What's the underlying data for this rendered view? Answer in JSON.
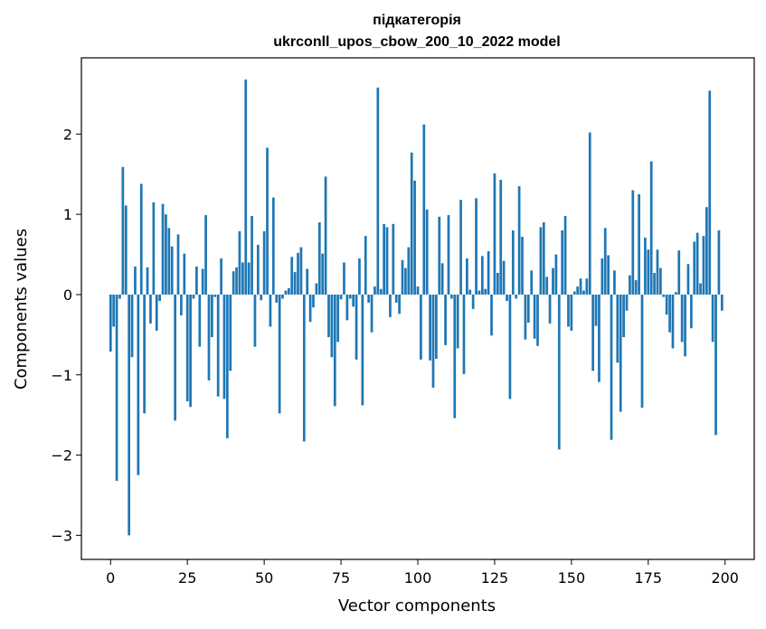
{
  "chart_data": {
    "type": "bar",
    "title_lines": [
      "підкатегорія",
      "ukrconll_upos_cbow_200_10_2022 model"
    ],
    "xlabel": "Vector components",
    "ylabel": "Components values",
    "xlim": [
      -9.5,
      209.5
    ],
    "ylim": [
      -3.3,
      2.95
    ],
    "x_ticks": [
      0,
      25,
      50,
      75,
      100,
      125,
      150,
      175,
      200
    ],
    "y_ticks": [
      -3,
      -2,
      -1,
      0,
      1,
      2
    ],
    "x_tick_labels": [
      "0",
      "25",
      "50",
      "75",
      "100",
      "125",
      "150",
      "175",
      "200"
    ],
    "y_tick_labels": [
      "−3",
      "−2",
      "−1",
      "0",
      "1",
      "2"
    ],
    "grid": false,
    "bar_color": "#1f77b4",
    "x": [
      0,
      1,
      2,
      3,
      4,
      5,
      6,
      7,
      8,
      9,
      10,
      11,
      12,
      13,
      14,
      15,
      16,
      17,
      18,
      19,
      20,
      21,
      22,
      23,
      24,
      25,
      26,
      27,
      28,
      29,
      30,
      31,
      32,
      33,
      34,
      35,
      36,
      37,
      38,
      39,
      40,
      41,
      42,
      43,
      44,
      45,
      46,
      47,
      48,
      49,
      50,
      51,
      52,
      53,
      54,
      55,
      56,
      57,
      58,
      59,
      60,
      61,
      62,
      63,
      64,
      65,
      66,
      67,
      68,
      69,
      70,
      71,
      72,
      73,
      74,
      75,
      76,
      77,
      78,
      79,
      80,
      81,
      82,
      83,
      84,
      85,
      86,
      87,
      88,
      89,
      90,
      91,
      92,
      93,
      94,
      95,
      96,
      97,
      98,
      99,
      100,
      101,
      102,
      103,
      104,
      105,
      106,
      107,
      108,
      109,
      110,
      111,
      112,
      113,
      114,
      115,
      116,
      117,
      118,
      119,
      120,
      121,
      122,
      123,
      124,
      125,
      126,
      127,
      128,
      129,
      130,
      131,
      132,
      133,
      134,
      135,
      136,
      137,
      138,
      139,
      140,
      141,
      142,
      143,
      144,
      145,
      146,
      147,
      148,
      149,
      150,
      151,
      152,
      153,
      154,
      155,
      156,
      157,
      158,
      159,
      160,
      161,
      162,
      163,
      164,
      165,
      166,
      167,
      168,
      169,
      170,
      171,
      172,
      173,
      174,
      175,
      176,
      177,
      178,
      179,
      180,
      181,
      182,
      183,
      184,
      185,
      186,
      187,
      188,
      189,
      190,
      191,
      192,
      193,
      194,
      195,
      196,
      197,
      198,
      199
    ],
    "values": [
      -0.71,
      -0.4,
      -2.32,
      -0.05,
      1.59,
      1.11,
      -3.0,
      -0.78,
      0.35,
      -2.25,
      1.38,
      -1.48,
      0.34,
      -0.36,
      1.15,
      -0.45,
      -0.08,
      1.13,
      1.0,
      0.83,
      0.6,
      -1.57,
      0.75,
      -0.26,
      0.51,
      -1.33,
      -1.4,
      -0.05,
      0.35,
      -0.65,
      0.32,
      0.99,
      -1.07,
      -0.53,
      -0.03,
      -1.27,
      0.45,
      -1.3,
      -1.79,
      -0.95,
      0.29,
      0.34,
      0.79,
      0.4,
      2.68,
      0.4,
      0.98,
      -0.65,
      0.62,
      -0.07,
      0.79,
      1.83,
      -0.4,
      1.21,
      -0.1,
      -1.48,
      -0.05,
      0.05,
      0.08,
      0.47,
      0.28,
      0.52,
      0.59,
      -1.83,
      0.32,
      -0.34,
      -0.16,
      0.14,
      0.9,
      0.51,
      1.47,
      -0.53,
      -0.78,
      -1.39,
      -0.59,
      -0.06,
      0.4,
      -0.32,
      -0.05,
      -0.15,
      -0.81,
      0.45,
      -1.38,
      0.73,
      -0.1,
      -0.47,
      0.1,
      2.58,
      0.07,
      0.88,
      0.84,
      -0.28,
      0.88,
      -0.1,
      -0.24,
      0.43,
      0.33,
      0.59,
      1.77,
      1.42,
      0.1,
      -0.81,
      2.12,
      1.06,
      -0.82,
      -1.16,
      -0.8,
      0.97,
      0.39,
      -0.63,
      0.99,
      -0.05,
      -1.54,
      -0.67,
      1.18,
      -0.99,
      0.45,
      0.06,
      -0.18,
      1.2,
      0.05,
      0.48,
      0.07,
      0.54,
      -0.51,
      1.51,
      0.27,
      1.43,
      0.42,
      -0.08,
      -1.3,
      0.8,
      -0.05,
      1.35,
      0.72,
      -0.56,
      -0.35,
      0.3,
      -0.55,
      -0.64,
      0.84,
      0.9,
      0.22,
      -0.36,
      0.33,
      0.5,
      -1.93,
      0.8,
      0.98,
      -0.4,
      -0.45,
      0.04,
      0.1,
      0.2,
      0.05,
      0.2,
      2.02,
      -0.95,
      -0.39,
      -1.09,
      0.45,
      0.83,
      0.49,
      -1.81,
      0.3,
      -0.85,
      -1.46,
      -0.53,
      -0.2,
      0.24,
      1.3,
      0.18,
      1.25,
      -1.41,
      0.71,
      0.56,
      1.66,
      0.27,
      0.56,
      0.33,
      -0.03,
      -0.25,
      -0.47,
      -0.67,
      0.03,
      0.55,
      -0.59,
      -0.77,
      0.38,
      -0.42,
      0.66,
      0.77,
      0.14,
      0.73,
      1.09,
      2.54,
      -0.59,
      -1.75,
      0.8,
      -0.2
    ]
  }
}
